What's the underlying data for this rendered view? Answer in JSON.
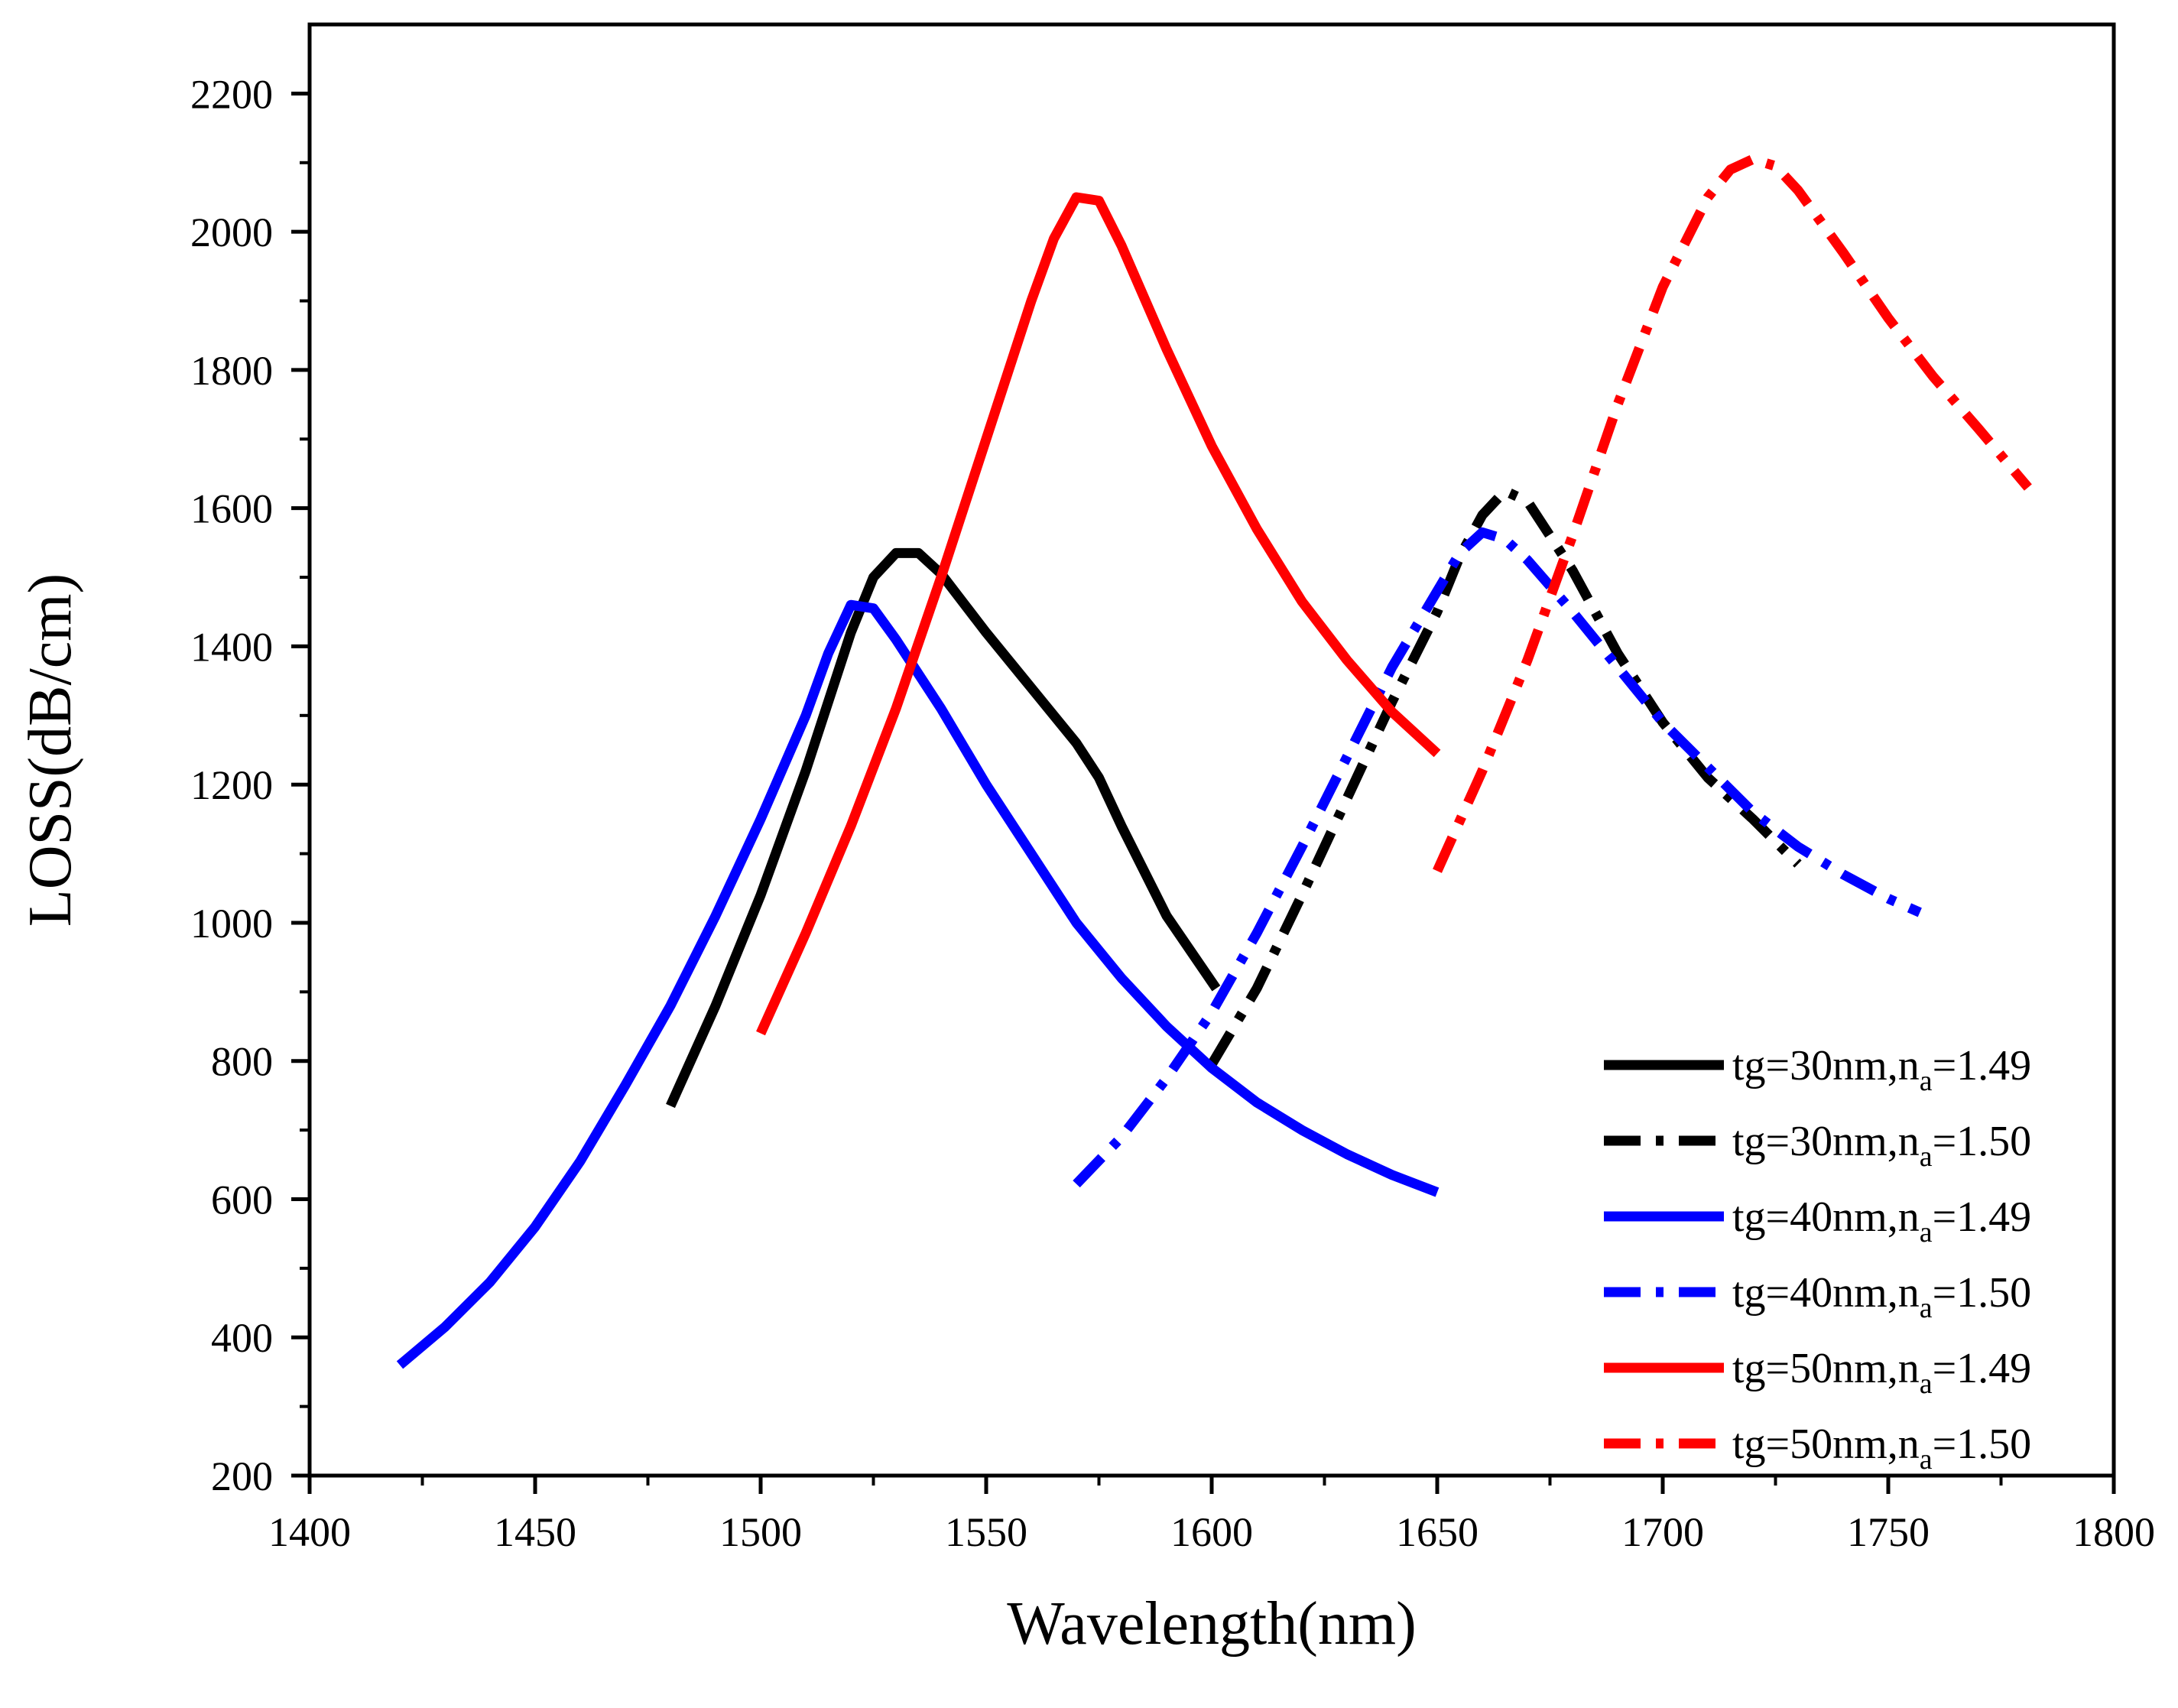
{
  "chart_data": {
    "type": "line",
    "title": "",
    "xlabel": "Wavelength(nm)",
    "ylabel": "LOSS(dB/cm)",
    "xlim": [
      1400,
      1800
    ],
    "ylim": [
      200,
      2300
    ],
    "xticks": [
      1400,
      1450,
      1500,
      1550,
      1600,
      1650,
      1700,
      1750,
      1800
    ],
    "yticks": [
      200,
      400,
      600,
      800,
      1000,
      1200,
      1400,
      1600,
      1800,
      2000,
      2200
    ],
    "grid": false,
    "legend_position": "bottom-right",
    "series": [
      {
        "label_main": "tg=30nm,n",
        "label_sub": "a",
        "label_tail": "=1.49",
        "color": "#000000",
        "style": "solid",
        "x": [
          1480,
          1490,
          1500,
          1510,
          1520,
          1525,
          1530,
          1535,
          1540,
          1550,
          1560,
          1570,
          1575,
          1580,
          1590,
          1601
        ],
        "y": [
          735,
          880,
          1040,
          1220,
          1420,
          1500,
          1535,
          1535,
          1505,
          1420,
          1340,
          1260,
          1210,
          1140,
          1010,
          905
        ]
      },
      {
        "label_main": "tg=30nm,n",
        "label_sub": "a",
        "label_tail": "=1.50",
        "color": "#000000",
        "style": "dashdot",
        "x": [
          1600,
          1610,
          1620,
          1630,
          1640,
          1650,
          1655,
          1660,
          1665,
          1670,
          1680,
          1690,
          1700,
          1710,
          1720,
          1730
        ],
        "y": [
          795,
          905,
          1040,
          1180,
          1320,
          1450,
          1530,
          1590,
          1625,
          1610,
          1510,
          1390,
          1290,
          1210,
          1150,
          1085
        ]
      },
      {
        "label_main": "tg=40nm,n",
        "label_sub": "a",
        "label_tail": "=1.49",
        "color": "#0000ff",
        "style": "solid",
        "x": [
          1420,
          1430,
          1440,
          1450,
          1460,
          1470,
          1480,
          1490,
          1500,
          1510,
          1515,
          1520,
          1525,
          1530,
          1540,
          1550,
          1560,
          1570,
          1580,
          1590,
          1600,
          1610,
          1620,
          1630,
          1640,
          1650
        ],
        "y": [
          360,
          415,
          480,
          560,
          655,
          765,
          880,
          1010,
          1150,
          1300,
          1390,
          1460,
          1455,
          1410,
          1310,
          1200,
          1100,
          1000,
          920,
          850,
          790,
          740,
          700,
          665,
          635,
          610
        ]
      },
      {
        "label_main": "tg=40nm,n",
        "label_sub": "a",
        "label_tail": "=1.50",
        "color": "#0000ff",
        "style": "dashdot",
        "x": [
          1570,
          1580,
          1590,
          1600,
          1610,
          1620,
          1630,
          1640,
          1650,
          1655,
          1660,
          1665,
          1670,
          1680,
          1690,
          1700,
          1710,
          1720,
          1730,
          1740,
          1750,
          1757
        ],
        "y": [
          622,
          690,
          775,
          870,
          985,
          1110,
          1240,
          1370,
          1480,
          1535,
          1565,
          1555,
          1525,
          1450,
          1370,
          1290,
          1225,
          1160,
          1110,
          1070,
          1035,
          1015
        ]
      },
      {
        "label_main": "tg=50nm,n",
        "label_sub": "a",
        "label_tail": "=1.49",
        "color": "#ff0000",
        "style": "solid",
        "x": [
          1500,
          1510,
          1520,
          1530,
          1540,
          1550,
          1560,
          1565,
          1570,
          1575,
          1580,
          1590,
          1600,
          1610,
          1620,
          1630,
          1640,
          1650
        ],
        "y": [
          840,
          985,
          1140,
          1310,
          1500,
          1700,
          1900,
          1990,
          2050,
          2045,
          1980,
          1830,
          1690,
          1570,
          1465,
          1380,
          1305,
          1245
        ]
      },
      {
        "label_main": "tg=50nm,n",
        "label_sub": "a",
        "label_tail": "=1.50",
        "color": "#ff0000",
        "style": "dashdot",
        "x": [
          1650,
          1660,
          1670,
          1680,
          1690,
          1700,
          1710,
          1715,
          1720,
          1725,
          1730,
          1740,
          1750,
          1760,
          1770,
          1781
        ],
        "y": [
          1075,
          1220,
          1380,
          1560,
          1750,
          1920,
          2050,
          2090,
          2105,
          2095,
          2060,
          1970,
          1875,
          1790,
          1715,
          1630
        ]
      }
    ]
  }
}
